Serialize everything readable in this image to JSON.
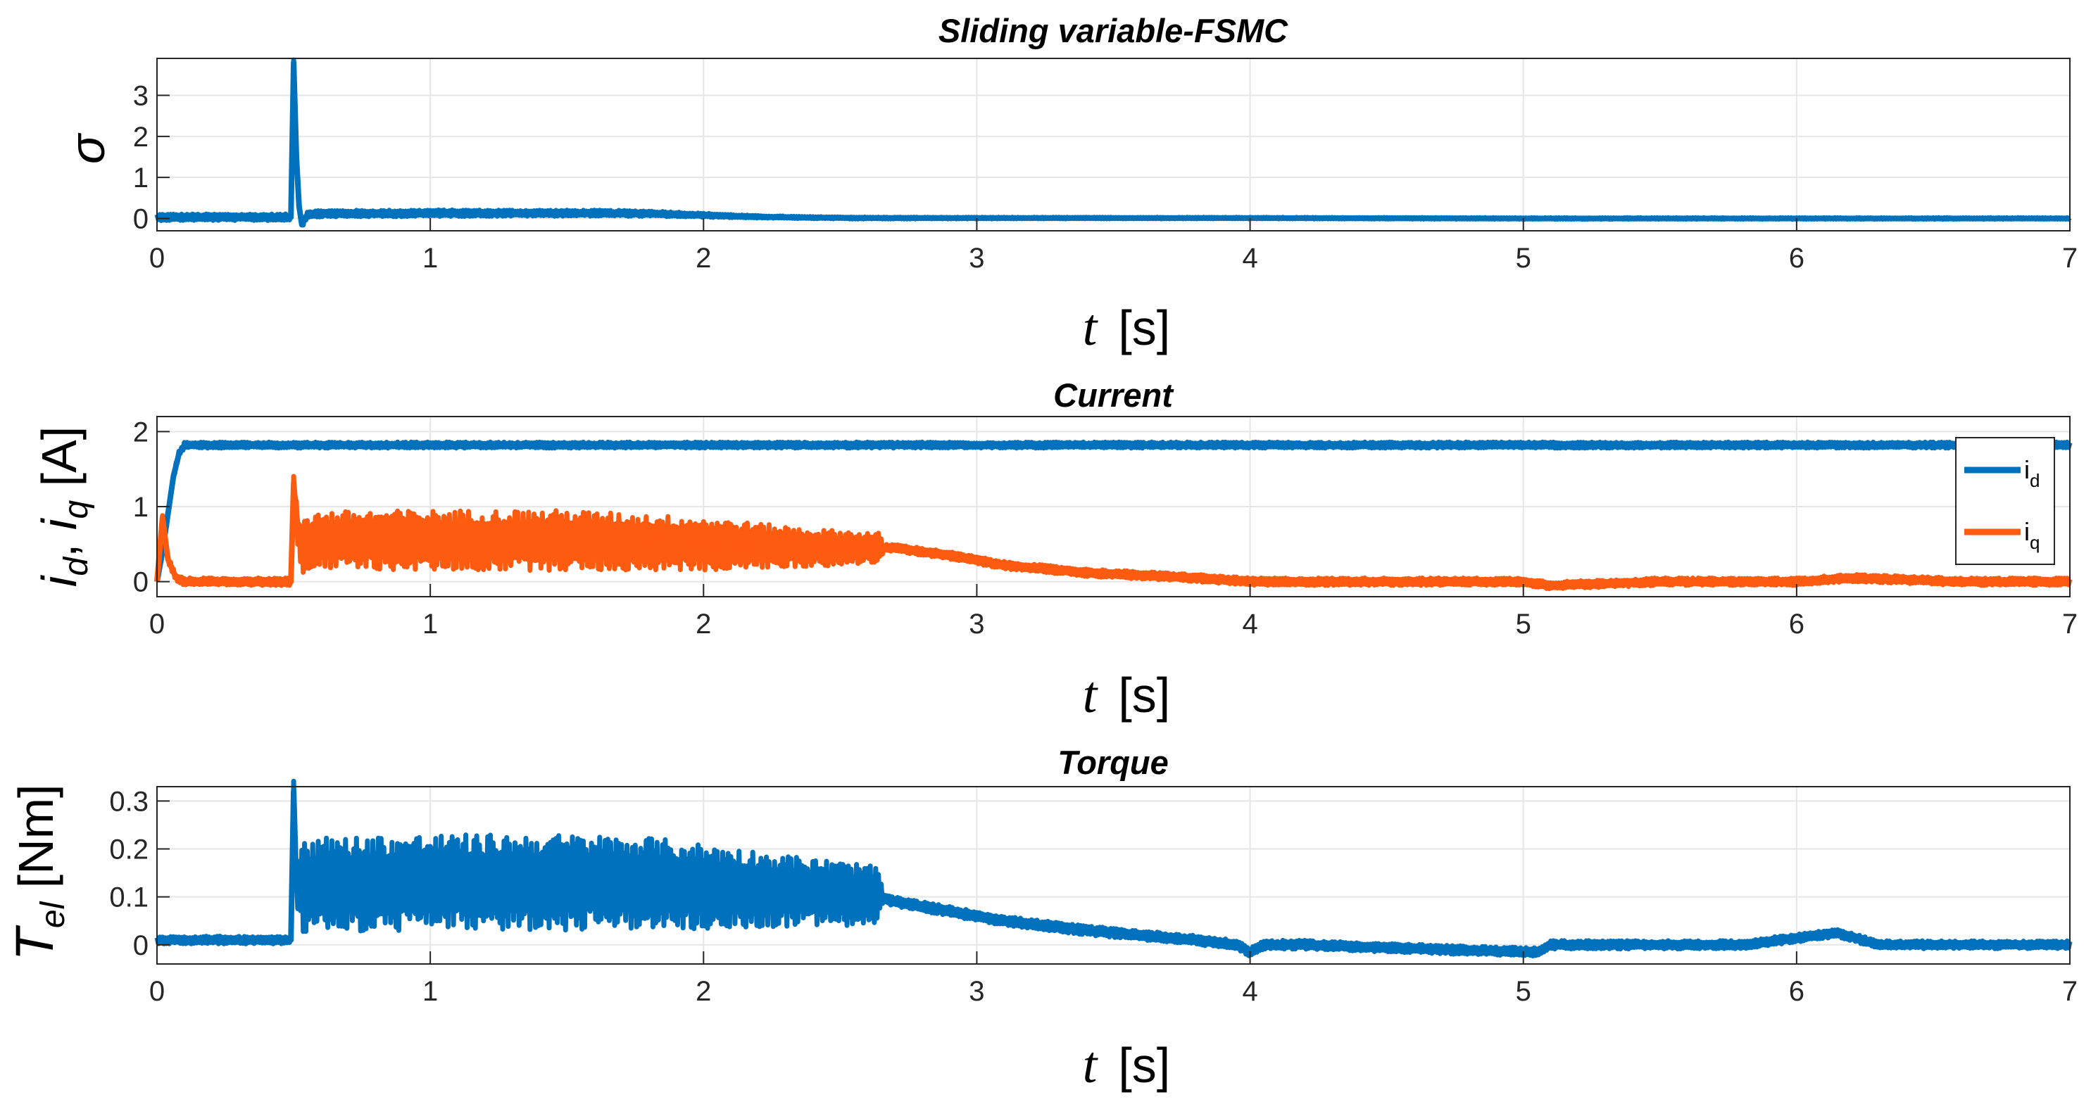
{
  "chart_data": [
    {
      "type": "line",
      "title": "Sliding variable-FSMC",
      "xlabel": "t",
      "xunit": "[s]",
      "ylabel": "σ",
      "xlim": [
        0,
        7
      ],
      "ylim": [
        -0.3,
        3.9
      ],
      "xticks": [
        0,
        1,
        2,
        3,
        4,
        5,
        6,
        7
      ],
      "yticks": [
        0,
        1,
        2,
        3
      ],
      "grid": true,
      "series": [
        {
          "name": "σ",
          "color": "#0072BD",
          "x": [
            0,
            0.49,
            0.5,
            0.51,
            0.52,
            0.53,
            0.55,
            0.6,
            0.8,
            1.0,
            1.2,
            1.4,
            1.6,
            1.8,
            2.0,
            2.2,
            2.4,
            2.6,
            3.0,
            4.0,
            5.0,
            6.0,
            7.0
          ],
          "y": [
            0.03,
            0.03,
            3.8,
            1.5,
            0.3,
            -0.15,
            0.1,
            0.12,
            0.12,
            0.13,
            0.13,
            0.13,
            0.13,
            0.12,
            0.08,
            0.04,
            0.02,
            0.01,
            0.01,
            0.01,
            0.0,
            0.0,
            0.0
          ],
          "noise_band": [
            [
              0.53,
              0.08
            ],
            [
              1.0,
              0.08
            ],
            [
              1.8,
              0.07
            ],
            [
              2.2,
              0.03
            ],
            [
              3.0,
              0.02
            ],
            [
              7.0,
              0.02
            ]
          ]
        }
      ]
    },
    {
      "type": "line",
      "title": "Current",
      "xlabel": "t",
      "xunit": "[s]",
      "ylabel": "i_d, i_q [A]",
      "ylabel_parts": [
        "i",
        "d",
        ", ",
        "i",
        "q",
        "  [A]"
      ],
      "xlim": [
        0,
        7
      ],
      "ylim": [
        -0.2,
        2.2
      ],
      "xticks": [
        0,
        1,
        2,
        3,
        4,
        5,
        6,
        7
      ],
      "yticks": [
        0,
        1,
        2
      ],
      "grid": true,
      "legend_position": "right",
      "series": [
        {
          "name": "i_d",
          "label_main": "i",
          "label_sub": "d",
          "color": "#0072BD",
          "x": [
            0,
            0.02,
            0.04,
            0.06,
            0.08,
            0.1,
            0.15,
            1,
            2,
            3,
            4,
            5,
            6,
            7
          ],
          "y": [
            0.0,
            0.4,
            0.9,
            1.4,
            1.7,
            1.82,
            1.82,
            1.82,
            1.82,
            1.82,
            1.82,
            1.82,
            1.82,
            1.82
          ],
          "noise_band": [
            [
              0.1,
              0.04
            ],
            [
              7.0,
              0.04
            ]
          ]
        },
        {
          "name": "i_q",
          "label_main": "i",
          "label_sub": "q",
          "color": "#FD5B0F",
          "x": [
            0,
            0.02,
            0.04,
            0.07,
            0.1,
            0.49,
            0.5,
            0.52,
            0.53,
            0.6,
            1.0,
            1.5,
            2.0,
            2.4,
            2.65,
            2.7,
            2.9,
            3.1,
            3.4,
            3.8,
            4.0,
            4.2,
            4.6,
            5.0,
            5.1,
            5.5,
            6.0,
            6.2,
            6.6,
            7.0
          ],
          "y": [
            0.0,
            0.85,
            0.3,
            0.05,
            0.0,
            0.0,
            1.3,
            0.55,
            0.5,
            0.55,
            0.55,
            0.55,
            0.5,
            0.45,
            0.45,
            0.45,
            0.35,
            0.22,
            0.12,
            0.05,
            0.0,
            0.0,
            0.0,
            0.0,
            -0.05,
            0.0,
            0.0,
            0.05,
            0.0,
            0.0
          ],
          "noise_band": [
            [
              0.1,
              0.05
            ],
            [
              0.49,
              0.05
            ],
            [
              0.53,
              0.38
            ],
            [
              1.0,
              0.4
            ],
            [
              1.5,
              0.4
            ],
            [
              2.0,
              0.35
            ],
            [
              2.4,
              0.25
            ],
            [
              2.64,
              0.2
            ],
            [
              2.66,
              0.05
            ],
            [
              7.0,
              0.05
            ]
          ]
        }
      ]
    },
    {
      "type": "line",
      "title": "Torque",
      "xlabel": "t",
      "xunit": "[s]",
      "ylabel": "T_el [Nm]",
      "ylabel_parts": [
        "T",
        "el",
        "  [Nm]"
      ],
      "xlim": [
        0,
        7
      ],
      "ylim": [
        -0.04,
        0.33
      ],
      "xticks": [
        0,
        1,
        2,
        3,
        4,
        5,
        6,
        7
      ],
      "yticks": [
        0,
        0.1,
        0.2,
        0.3
      ],
      "grid": true,
      "series": [
        {
          "name": "T_el",
          "color": "#0072BD",
          "x": [
            0,
            0.49,
            0.5,
            0.51,
            0.53,
            0.6,
            1.0,
            1.5,
            1.8,
            2.0,
            2.4,
            2.64,
            2.7,
            2.9,
            3.1,
            3.4,
            3.8,
            3.95,
            4.0,
            4.05,
            4.2,
            4.7,
            5.05,
            5.1,
            5.8,
            6.15,
            6.3,
            6.5,
            7.0
          ],
          "y": [
            0.01,
            0.01,
            0.32,
            0.12,
            0.12,
            0.125,
            0.13,
            0.13,
            0.13,
            0.12,
            0.11,
            0.1,
            0.09,
            0.07,
            0.05,
            0.03,
            0.01,
            0.0,
            -0.015,
            0.0,
            0.0,
            -0.01,
            -0.015,
            0.0,
            0.0,
            0.025,
            0.0,
            0.0,
            0.0
          ],
          "noise_band": [
            [
              0.1,
              0.008
            ],
            [
              0.49,
              0.008
            ],
            [
              0.53,
              0.1
            ],
            [
              1.0,
              0.1
            ],
            [
              1.5,
              0.1
            ],
            [
              2.0,
              0.09
            ],
            [
              2.4,
              0.07
            ],
            [
              2.63,
              0.065
            ],
            [
              2.66,
              0.01
            ],
            [
              7.0,
              0.008
            ]
          ]
        }
      ]
    }
  ]
}
